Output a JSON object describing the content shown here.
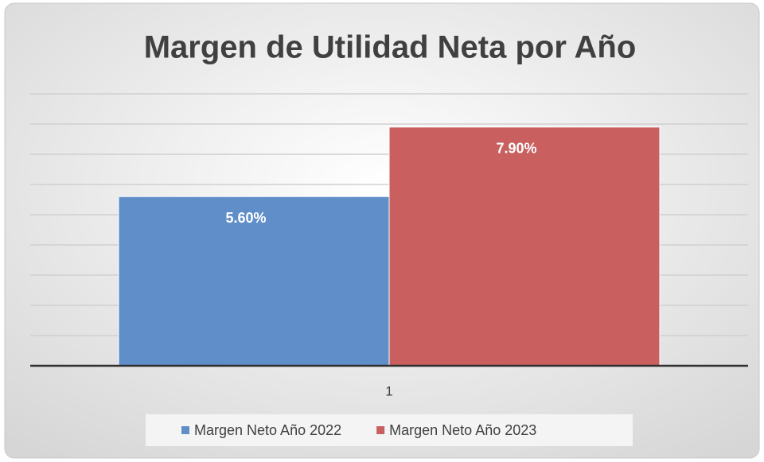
{
  "chart_data": {
    "type": "bar",
    "title": "Margen de Utilidad Neta por Año",
    "categories": [
      "1"
    ],
    "series": [
      {
        "name": "Margen Neto Año 2022",
        "color": "#5f8ec8",
        "values": [
          5.6
        ],
        "value_labels": [
          "5.60%"
        ]
      },
      {
        "name": "Margen Neto Año 2023",
        "color": "#c95f5f",
        "values": [
          7.9
        ],
        "value_labels": [
          "7.90%"
        ]
      }
    ],
    "ylim": [
      0,
      9
    ],
    "yticks": [
      0,
      1,
      2,
      3,
      4,
      5,
      6,
      7,
      8,
      9
    ],
    "grid": true,
    "legend": "bottom"
  }
}
